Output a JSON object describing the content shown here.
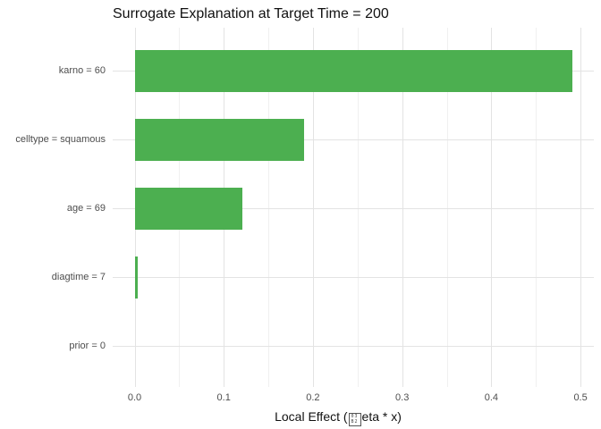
{
  "chart_data": {
    "type": "bar",
    "orientation": "horizontal",
    "title": "Surrogate Explanation at Target Time = 200",
    "categories": [
      "karno = 60",
      "celltype = squamous",
      "age = 69",
      "diagtime = 7",
      "prior = 0"
    ],
    "values": [
      0.491,
      0.19,
      0.121,
      0.003,
      0.0
    ],
    "xlabel_prefix": "Local Effect (",
    "xlabel_missing_glyph_hex": {
      "top": "03",
      "bottom": "B2"
    },
    "xlabel_suffix": "eta * x)",
    "x_tick_values": [
      0.0,
      0.1,
      0.2,
      0.3,
      0.4,
      0.5
    ],
    "x_tick_labels": [
      "0.0",
      "0.1",
      "0.2",
      "0.3",
      "0.4",
      "0.5"
    ],
    "x_minor_tick_values": [
      0.05,
      0.15,
      0.25,
      0.35,
      0.45
    ],
    "xlim": [
      -0.025,
      0.516
    ],
    "grid": true,
    "legend": false,
    "bar_color": "#4caf50",
    "major_grid_color": "#e3e3e3",
    "minor_grid_color": "#f0f0f0",
    "tick_label_color": "#4d4d4d",
    "title_color": "#111111"
  }
}
